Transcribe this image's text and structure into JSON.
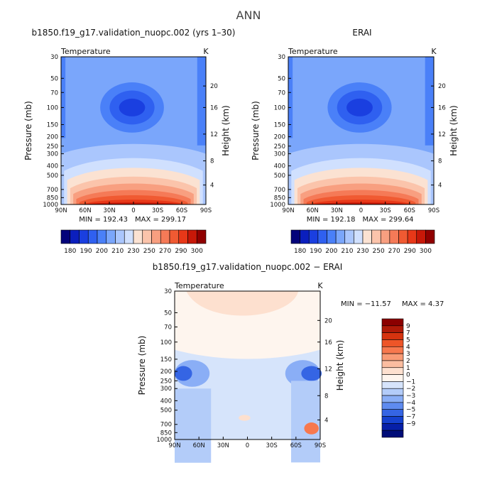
{
  "figure_title": "ANN",
  "chart_data": [
    {
      "type": "heatmap",
      "title": "b1850.f19_g17.validation_nuopc.002 (yrs 1–30)",
      "variable_label": "Temperature",
      "unit_label": "K",
      "xlabel": "",
      "ylabel": "Pressure (mb)",
      "y2label": "Height (km)",
      "x_ticks": [
        "90N",
        "60N",
        "30N",
        "0",
        "30S",
        "60S",
        "90S"
      ],
      "y_ticks": [
        "30",
        "50",
        "70",
        "100",
        "150",
        "200",
        "250",
        "300",
        "400",
        "500",
        "700",
        "850",
        "1000"
      ],
      "y2_ticks": [
        "20",
        "16",
        "12",
        "8",
        "4"
      ],
      "xlim": [
        "90N",
        "90S"
      ],
      "ylim": [
        1000,
        30
      ],
      "min_label": "MIN = 192.43",
      "max_label": "MAX = 299.17",
      "min": 192.43,
      "max": 299.17,
      "colorbar": {
        "orientation": "horizontal",
        "tick_labels": [
          "180",
          "190",
          "200",
          "210",
          "230",
          "250",
          "270",
          "290",
          "300"
        ],
        "colors": [
          "#03037a",
          "#0b1fbd",
          "#1a3fe0",
          "#2f60f0",
          "#4a80f8",
          "#7aa6fb",
          "#aac6fd",
          "#d0e0fe",
          "#fbe2d2",
          "#fbc4ab",
          "#f89f80",
          "#f57a57",
          "#f05a32",
          "#e83818",
          "#c71808",
          "#900000"
        ]
      }
    },
    {
      "type": "heatmap",
      "title": "ERAI",
      "variable_label": "Temperature",
      "unit_label": "K",
      "xlabel": "",
      "ylabel": "Pressure (mb)",
      "y2label": "Height (km)",
      "x_ticks": [
        "90N",
        "60N",
        "30N",
        "0",
        "30S",
        "60S",
        "90S"
      ],
      "y_ticks": [
        "30",
        "50",
        "70",
        "100",
        "150",
        "200",
        "250",
        "300",
        "400",
        "500",
        "700",
        "850",
        "1000"
      ],
      "y2_ticks": [
        "20",
        "16",
        "12",
        "8",
        "4"
      ],
      "xlim": [
        "90N",
        "90S"
      ],
      "ylim": [
        1000,
        30
      ],
      "min_label": "MIN = 192.18",
      "max_label": "MAX = 299.64",
      "min": 192.18,
      "max": 299.64,
      "colorbar": {
        "orientation": "horizontal",
        "tick_labels": [
          "180",
          "190",
          "200",
          "210",
          "230",
          "250",
          "270",
          "290",
          "300"
        ],
        "colors": [
          "#03037a",
          "#0b1fbd",
          "#1a3fe0",
          "#2f60f0",
          "#4a80f8",
          "#7aa6fb",
          "#aac6fd",
          "#d0e0fe",
          "#fbe2d2",
          "#fbc4ab",
          "#f89f80",
          "#f57a57",
          "#f05a32",
          "#e83818",
          "#c71808",
          "#900000"
        ]
      }
    },
    {
      "type": "heatmap",
      "title": "b1850.f19_g17.validation_nuopc.002 − ERAI",
      "variable_label": "Temperature",
      "unit_label": "K",
      "xlabel": "",
      "ylabel": "Pressure (mb)",
      "y2label": "Height (km)",
      "x_ticks": [
        "90N",
        "60N",
        "30N",
        "0",
        "30S",
        "60S",
        "90S"
      ],
      "y_ticks": [
        "30",
        "50",
        "70",
        "100",
        "150",
        "200",
        "250",
        "300",
        "400",
        "500",
        "700",
        "850",
        "1000"
      ],
      "y2_ticks": [
        "20",
        "16",
        "12",
        "8",
        "4"
      ],
      "xlim": [
        "90N",
        "90S"
      ],
      "ylim": [
        1000,
        30
      ],
      "min_label": "MIN = −11.57",
      "max_label": "MAX =    4.37",
      "min": -11.57,
      "max": 4.37,
      "colorbar": {
        "orientation": "vertical",
        "tick_labels": [
          "9",
          "7",
          "5",
          "4",
          "3",
          "2",
          "1",
          "0",
          "−1",
          "−2",
          "−3",
          "−4",
          "−5",
          "−7",
          "−9"
        ],
        "colors": [
          "#8b0000",
          "#b01a08",
          "#d6330f",
          "#ee5528",
          "#f7784e",
          "#f99b76",
          "#fbbda0",
          "#fde0cf",
          "#fef5ee",
          "#d6e4fb",
          "#b3ccf9",
          "#8aaef6",
          "#5e8bf0",
          "#3565e4",
          "#1541cf",
          "#061fa8",
          "#000d78"
        ]
      }
    }
  ]
}
